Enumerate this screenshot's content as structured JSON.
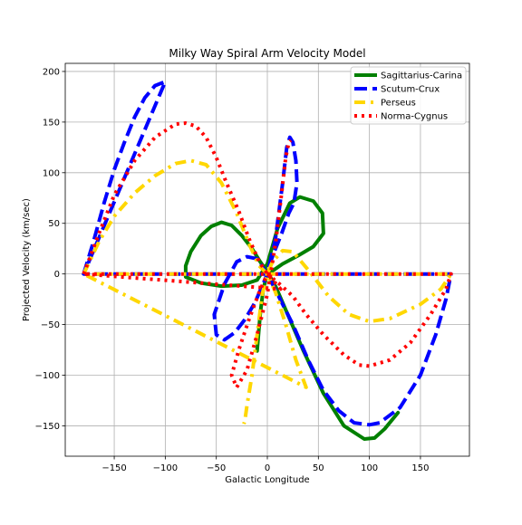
{
  "chart_data": {
    "type": "line",
    "title": "Milky Way Spiral Arm Velocity Model",
    "xlabel": "Galactic Longitude",
    "ylabel": "Projected Velocity (km/sec)",
    "xlim": [
      -198,
      198
    ],
    "ylim": [
      -180,
      208
    ],
    "xticks": [
      -150,
      -100,
      -50,
      0,
      50,
      100,
      150
    ],
    "xtick_labels": [
      "−150",
      "−100",
      "−50",
      "0",
      "50",
      "100",
      "150"
    ],
    "yticks": [
      -150,
      -100,
      -50,
      0,
      50,
      100,
      150,
      200
    ],
    "ytick_labels": [
      "−150",
      "−100",
      "−50",
      "0",
      "50",
      "100",
      "150",
      "200"
    ],
    "grid": true,
    "legend_position": "top-right",
    "series": [
      {
        "name": "Sagittarius-Carina",
        "color": "#008000",
        "style": "solid",
        "points": [
          [
            -10,
            -76
          ],
          [
            -7,
            -40
          ],
          [
            -4,
            -15
          ],
          [
            -1,
            -3
          ],
          [
            0,
            0
          ],
          [
            5,
            3
          ],
          [
            15,
            10
          ],
          [
            30,
            18
          ],
          [
            45,
            27
          ],
          [
            55,
            40
          ],
          [
            54,
            60
          ],
          [
            45,
            72
          ],
          [
            32,
            76
          ],
          [
            22,
            70
          ],
          [
            10,
            45
          ],
          [
            0,
            10
          ],
          [
            -10,
            -6
          ],
          [
            -25,
            -11
          ],
          [
            -45,
            -12
          ],
          [
            -65,
            -9
          ],
          [
            -80,
            -3
          ],
          [
            -80,
            8
          ],
          [
            -75,
            22
          ],
          [
            -65,
            38
          ],
          [
            -55,
            47
          ],
          [
            -45,
            51
          ],
          [
            -35,
            48
          ],
          [
            -25,
            38
          ],
          [
            -15,
            25
          ],
          [
            -7,
            12
          ],
          [
            0,
            2
          ],
          [
            8,
            -12
          ],
          [
            20,
            -40
          ],
          [
            35,
            -75
          ],
          [
            55,
            -118
          ],
          [
            75,
            -150
          ],
          [
            95,
            -163
          ],
          [
            105,
            -162
          ],
          [
            115,
            -153
          ],
          [
            128,
            -137
          ]
        ]
      },
      {
        "name": "Scutum-Crux",
        "color": "#0000ff",
        "style": "dashed",
        "points": [
          [
            -180,
            0
          ],
          [
            -170,
            33
          ],
          [
            -160,
            70
          ],
          [
            -150,
            103
          ],
          [
            -140,
            130
          ],
          [
            -130,
            155
          ],
          [
            -120,
            174
          ],
          [
            -110,
            186
          ],
          [
            -100,
            190
          ],
          [
            -100,
            190
          ],
          [
            -180,
            0
          ],
          [
            -100,
            0
          ],
          [
            -50,
            0
          ],
          [
            0,
            0
          ],
          [
            100,
            0
          ],
          [
            180,
            0
          ],
          [
            175,
            -25
          ],
          [
            165,
            -60
          ],
          [
            150,
            -100
          ],
          [
            130,
            -132
          ],
          [
            110,
            -147
          ],
          [
            100,
            -149
          ],
          [
            85,
            -147
          ],
          [
            70,
            -135
          ],
          [
            55,
            -115
          ],
          [
            40,
            -85
          ],
          [
            25,
            -50
          ],
          [
            10,
            -20
          ],
          [
            0,
            0
          ],
          [
            -10,
            15
          ],
          [
            -20,
            17
          ],
          [
            -30,
            12
          ],
          [
            -42,
            -10
          ],
          [
            -52,
            -40
          ],
          [
            -50,
            -60
          ],
          [
            -42,
            -65
          ],
          [
            -32,
            -58
          ],
          [
            -22,
            -45
          ],
          [
            -12,
            -28
          ],
          [
            0,
            0
          ],
          [
            8,
            35
          ],
          [
            15,
            90
          ],
          [
            19,
            125
          ],
          [
            22,
            135
          ],
          [
            25,
            130
          ],
          [
            28,
            112
          ],
          [
            29,
            90
          ],
          [
            26,
            70
          ],
          [
            21,
            60
          ],
          [
            14,
            40
          ],
          [
            6,
            20
          ],
          [
            0,
            3
          ]
        ]
      },
      {
        "name": "Perseus",
        "color": "#ffd700",
        "style": "dashdot",
        "points": [
          [
            -180,
            0
          ],
          [
            -165,
            32
          ],
          [
            -150,
            57
          ],
          [
            -130,
            80
          ],
          [
            -110,
            97
          ],
          [
            -90,
            109
          ],
          [
            -75,
            112
          ],
          [
            -60,
            108
          ],
          [
            -45,
            90
          ],
          [
            -30,
            60
          ],
          [
            -18,
            30
          ],
          [
            -8,
            8
          ],
          [
            0,
            0
          ],
          [
            8,
            -18
          ],
          [
            18,
            -50
          ],
          [
            28,
            -85
          ],
          [
            38,
            -112
          ],
          [
            -180,
            0
          ],
          [
            -100,
            0
          ],
          [
            0,
            0
          ],
          [
            100,
            0
          ],
          [
            180,
            0
          ],
          [
            170,
            -15
          ],
          [
            150,
            -30
          ],
          [
            120,
            -44
          ],
          [
            100,
            -47
          ],
          [
            80,
            -40
          ],
          [
            60,
            -22
          ],
          [
            40,
            4
          ],
          [
            25,
            22
          ],
          [
            15,
            23
          ],
          [
            5,
            12
          ],
          [
            0,
            0
          ],
          [
            -5,
            -20
          ],
          [
            -10,
            -60
          ],
          [
            -15,
            -100
          ],
          [
            -20,
            -130
          ],
          [
            -22,
            -145
          ],
          [
            -23,
            -148
          ]
        ]
      },
      {
        "name": "Norma-Cygnus",
        "color": "#ff0000",
        "style": "dotted",
        "points": [
          [
            -180,
            0
          ],
          [
            -165,
            40
          ],
          [
            -150,
            78
          ],
          [
            -130,
            112
          ],
          [
            -110,
            135
          ],
          [
            -90,
            148
          ],
          [
            -80,
            149
          ],
          [
            -70,
            146
          ],
          [
            -60,
            135
          ],
          [
            -50,
            115
          ],
          [
            -40,
            90
          ],
          [
            -28,
            62
          ],
          [
            -18,
            35
          ],
          [
            -8,
            12
          ],
          [
            0,
            0
          ],
          [
            7,
            -8
          ],
          [
            13,
            -15
          ],
          [
            -180,
            0
          ],
          [
            -100,
            0
          ],
          [
            0,
            0
          ],
          [
            100,
            0
          ],
          [
            180,
            0
          ],
          [
            175,
            -15
          ],
          [
            160,
            -40
          ],
          [
            140,
            -68
          ],
          [
            120,
            -85
          ],
          [
            100,
            -91
          ],
          [
            90,
            -90
          ],
          [
            75,
            -80
          ],
          [
            55,
            -60
          ],
          [
            38,
            -40
          ],
          [
            25,
            -22
          ],
          [
            12,
            -10
          ],
          [
            0,
            0
          ],
          [
            -8,
            -18
          ],
          [
            -18,
            -45
          ],
          [
            -28,
            -75
          ],
          [
            -35,
            -100
          ],
          [
            -30,
            -112
          ],
          [
            -20,
            -95
          ],
          [
            -10,
            -60
          ],
          [
            0,
            -20
          ],
          [
            8,
            30
          ],
          [
            14,
            80
          ],
          [
            18,
            115
          ],
          [
            21,
            130
          ],
          [
            23,
            132
          ]
        ]
      }
    ]
  }
}
